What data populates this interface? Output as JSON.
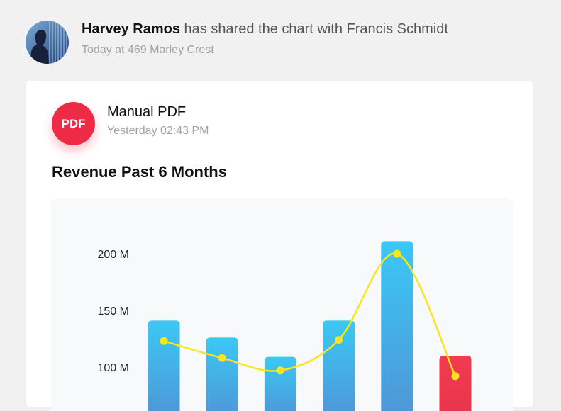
{
  "share": {
    "user": "Harvey Ramos",
    "action": "has shared the chart with Francis Schmidt",
    "meta": "Today at 469 Marley Crest"
  },
  "file": {
    "badge": "PDF",
    "name": "Manual PDF",
    "time": "Yesterday 02:43 PM"
  },
  "chart_title": "Revenue Past 6 Months",
  "colors": {
    "bar_top": "#3bc8f4",
    "bar_bottom": "#4f96d6",
    "highlight_top": "#f23b4f",
    "highlight_bottom": "#e8344e",
    "line": "#f6e71d",
    "badge": "#ee2b47"
  },
  "chart_data": {
    "type": "bar",
    "title": "Revenue Past 6 Months",
    "xlabel": "",
    "ylabel": "",
    "y_ticks": [
      "200 M",
      "150 M",
      "100 M"
    ],
    "ylim_visible": [
      100,
      200
    ],
    "series": [
      {
        "type": "bar",
        "values": [
          141,
          126,
          109,
          141,
          211,
          110
        ],
        "highlight_index": 5
      },
      {
        "type": "line",
        "values": [
          123,
          108,
          97,
          124,
          200,
          92
        ]
      }
    ],
    "grid": false
  }
}
